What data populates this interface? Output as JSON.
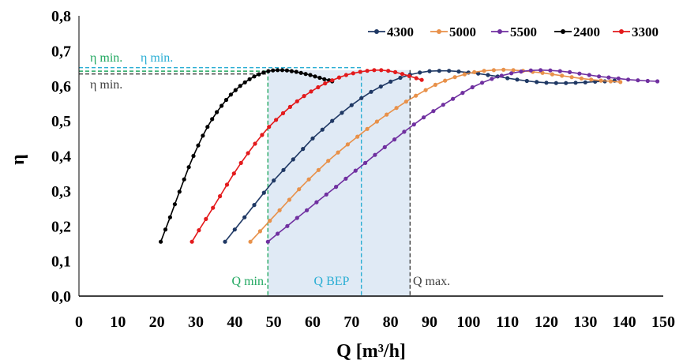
{
  "chart_data": {
    "type": "line",
    "xlabel": "Q [m³/h]",
    "ylabel": "η",
    "xlim": [
      0,
      150
    ],
    "ylim": [
      0,
      0.8
    ],
    "x_ticks": [
      0,
      10,
      20,
      30,
      40,
      50,
      60,
      70,
      80,
      90,
      100,
      110,
      120,
      130,
      140,
      150
    ],
    "y_ticks": [
      0.0,
      0.1,
      0.2,
      0.3,
      0.4,
      0.5,
      0.6,
      0.7,
      0.8
    ],
    "x_tick_labels": [
      "0",
      "10",
      "20",
      "30",
      "40",
      "50",
      "60",
      "70",
      "80",
      "90",
      "100",
      "110",
      "120",
      "130",
      "140",
      "150"
    ],
    "y_tick_labels": [
      "0,0",
      "0,1",
      "0,2",
      "0,3",
      "0,4",
      "0,5",
      "0,6",
      "0,7",
      "0,8"
    ],
    "grid": false,
    "legend_position": "top-right",
    "series": [
      {
        "name": "4300",
        "color": "#1f3864",
        "x": [
          37.5,
          40,
          42.5,
          45,
          47.5,
          50,
          52.5,
          55,
          57.5,
          60,
          62.5,
          65,
          67.5,
          70,
          72.5,
          75,
          77.5,
          80,
          82.5,
          85,
          87.5,
          90,
          92.5,
          95,
          97.5,
          100,
          102.5,
          105,
          107.5,
          110,
          112.5,
          115,
          117.5,
          120,
          122.5,
          125,
          127.5,
          130,
          132.5,
          135,
          137.5
        ],
        "y": [
          0.155,
          0.19,
          0.225,
          0.26,
          0.295,
          0.33,
          0.36,
          0.39,
          0.42,
          0.45,
          0.475,
          0.5,
          0.523,
          0.545,
          0.565,
          0.583,
          0.598,
          0.612,
          0.623,
          0.632,
          0.638,
          0.642,
          0.643,
          0.643,
          0.641,
          0.638,
          0.635,
          0.631,
          0.627,
          0.622,
          0.618,
          0.614,
          0.611,
          0.609,
          0.608,
          0.608,
          0.609,
          0.61,
          0.612,
          0.613,
          0.615
        ]
      },
      {
        "name": "5000",
        "color": "#e8914a",
        "x": [
          44,
          46.5,
          49,
          51.5,
          54,
          56.5,
          59,
          61.5,
          64,
          66.5,
          69,
          71.5,
          74,
          76.5,
          79,
          81.5,
          84,
          86.5,
          89,
          91.5,
          94,
          96.5,
          99,
          101.5,
          104,
          106.5,
          109,
          111.5,
          114,
          116.5,
          119,
          121.5,
          124,
          126.5,
          129,
          131.5,
          134,
          136.5,
          139
        ],
        "y": [
          0.155,
          0.185,
          0.215,
          0.245,
          0.275,
          0.305,
          0.333,
          0.36,
          0.386,
          0.41,
          0.433,
          0.455,
          0.477,
          0.498,
          0.518,
          0.537,
          0.555,
          0.572,
          0.588,
          0.603,
          0.615,
          0.625,
          0.633,
          0.639,
          0.643,
          0.645,
          0.646,
          0.645,
          0.643,
          0.64,
          0.637,
          0.633,
          0.629,
          0.625,
          0.621,
          0.618,
          0.615,
          0.613,
          0.611
        ]
      },
      {
        "name": "5500",
        "color": "#7030a0",
        "x": [
          48.5,
          51,
          53.5,
          56,
          58.5,
          61,
          63.5,
          66,
          68.5,
          71,
          73.5,
          76,
          78.5,
          81,
          83.5,
          86,
          88.5,
          91,
          93.5,
          96,
          98.5,
          101,
          103.5,
          106,
          108.5,
          111,
          113.5,
          116,
          118.5,
          121,
          123.5,
          126,
          128.5,
          131,
          133.5,
          136,
          138.5,
          141,
          143.5,
          146,
          148.5,
          151
        ],
        "y": [
          0.155,
          0.178,
          0.2,
          0.223,
          0.245,
          0.268,
          0.29,
          0.312,
          0.335,
          0.358,
          0.38,
          0.403,
          0.425,
          0.447,
          0.469,
          0.49,
          0.51,
          0.528,
          0.546,
          0.563,
          0.58,
          0.596,
          0.609,
          0.62,
          0.629,
          0.636,
          0.641,
          0.644,
          0.645,
          0.644,
          0.642,
          0.639,
          0.635,
          0.631,
          0.627,
          0.624,
          0.621,
          0.618,
          0.616,
          0.614,
          0.613,
          0.612
        ]
      },
      {
        "name": "2400",
        "color": "#000000",
        "x": [
          21,
          22.2,
          23.4,
          24.6,
          25.8,
          27,
          28.2,
          29.4,
          30.6,
          31.8,
          33,
          34.2,
          35.4,
          36.6,
          37.8,
          39,
          40.2,
          41.4,
          42.6,
          43.8,
          45,
          46.2,
          47.4,
          48.6,
          49.8,
          51,
          52.2,
          53.4,
          54.6,
          55.8,
          57,
          58.2,
          59.4,
          60.6,
          61.8,
          63,
          64.2,
          65
        ],
        "y": [
          0.155,
          0.19,
          0.225,
          0.262,
          0.298,
          0.333,
          0.368,
          0.4,
          0.43,
          0.458,
          0.483,
          0.505,
          0.525,
          0.543,
          0.56,
          0.575,
          0.588,
          0.6,
          0.61,
          0.619,
          0.627,
          0.633,
          0.638,
          0.642,
          0.644,
          0.645,
          0.645,
          0.644,
          0.642,
          0.64,
          0.637,
          0.634,
          0.631,
          0.627,
          0.623,
          0.619,
          0.616,
          0.613
        ]
      },
      {
        "name": "3300",
        "color": "#e31a1c",
        "x": [
          29,
          30.8,
          32.6,
          34.4,
          36.2,
          38,
          39.8,
          41.6,
          43.4,
          45.2,
          47,
          48.8,
          50.6,
          52.4,
          54.2,
          56,
          57.8,
          59.6,
          61.4,
          63.2,
          65,
          66.8,
          68.6,
          70.4,
          72.2,
          74,
          75.8,
          77.6,
          79.4,
          81.2,
          83,
          84.8,
          86.6,
          88
        ],
        "y": [
          0.155,
          0.188,
          0.22,
          0.252,
          0.285,
          0.318,
          0.35,
          0.38,
          0.408,
          0.435,
          0.46,
          0.483,
          0.503,
          0.522,
          0.54,
          0.556,
          0.571,
          0.584,
          0.596,
          0.607,
          0.616,
          0.624,
          0.631,
          0.636,
          0.64,
          0.643,
          0.645,
          0.645,
          0.643,
          0.639,
          0.634,
          0.628,
          0.622,
          0.617
        ]
      }
    ],
    "shaded_region": {
      "x_from": 48.5,
      "x_to": 85,
      "color": "#dbe6f3"
    },
    "annotations": {
      "vertical_lines": [
        {
          "x": 48.5,
          "y_top": 0.645,
          "color": "#22a861",
          "label": "Q min."
        },
        {
          "x": 72.5,
          "y_top": 0.645,
          "color": "#2aaed4",
          "label": "Q BEP"
        },
        {
          "x": 85,
          "y_top": 0.645,
          "color": "#404040",
          "label": "Q max."
        }
      ],
      "horizontal_lines": [
        {
          "y": 0.652,
          "x_to": 72.5,
          "color": "#2aaed4"
        },
        {
          "y": 0.642,
          "x_to": 48.5,
          "color": "#22a861"
        },
        {
          "y": 0.634,
          "x_to": 48.5,
          "color": "#404040"
        }
      ],
      "labels": [
        {
          "text": "η min.",
          "color": "#22a861"
        },
        {
          "text": "η min.",
          "color": "#2aaed4"
        },
        {
          "text": "η min.",
          "color": "#404040"
        }
      ]
    }
  }
}
